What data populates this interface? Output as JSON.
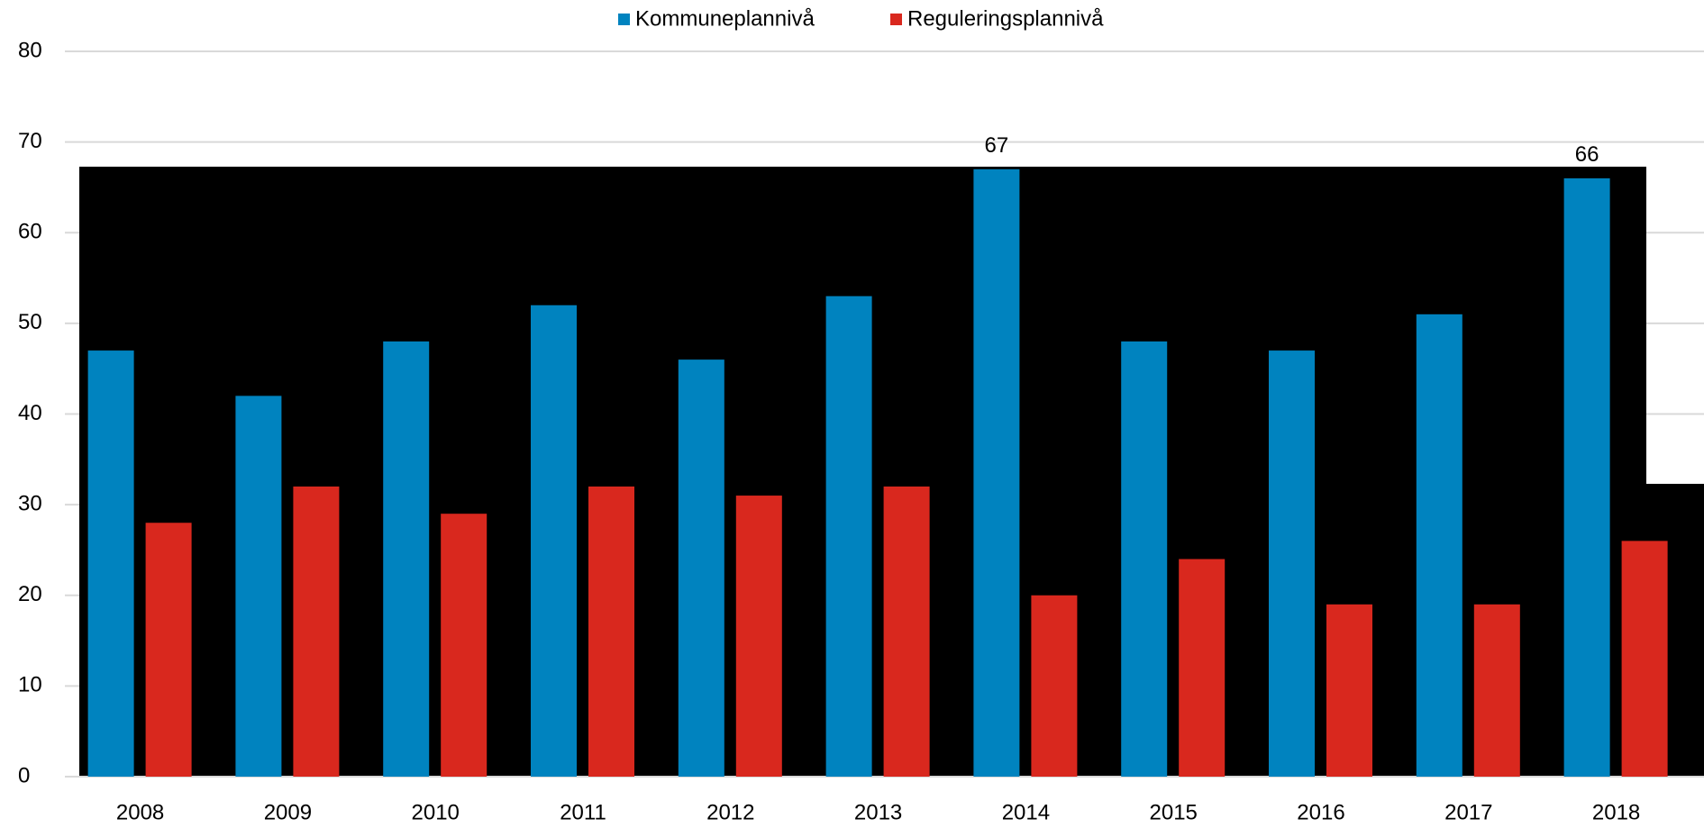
{
  "chart_data": {
    "type": "bar",
    "categories": [
      "2008",
      "2009",
      "2010",
      "2011",
      "2012",
      "2013",
      "2014",
      "2015",
      "2016",
      "2017",
      "2018"
    ],
    "series": [
      {
        "name": "Kommuneplannivå",
        "color": "#0083bf",
        "values": [
          47,
          42,
          48,
          52,
          46,
          53,
          67,
          48,
          47,
          51,
          66
        ],
        "value_labels": [
          null,
          null,
          null,
          null,
          null,
          null,
          "67",
          null,
          null,
          null,
          "66"
        ]
      },
      {
        "name": "Reguleringsplannivå",
        "color": "#d9281e",
        "values": [
          28,
          32,
          29,
          32,
          31,
          32,
          20,
          24,
          19,
          19,
          26
        ]
      }
    ],
    "ylim": [
      0,
      80
    ],
    "yticks": [
      0,
      10,
      20,
      30,
      40,
      50,
      60,
      70,
      80
    ],
    "grid": true,
    "legend": "top"
  }
}
